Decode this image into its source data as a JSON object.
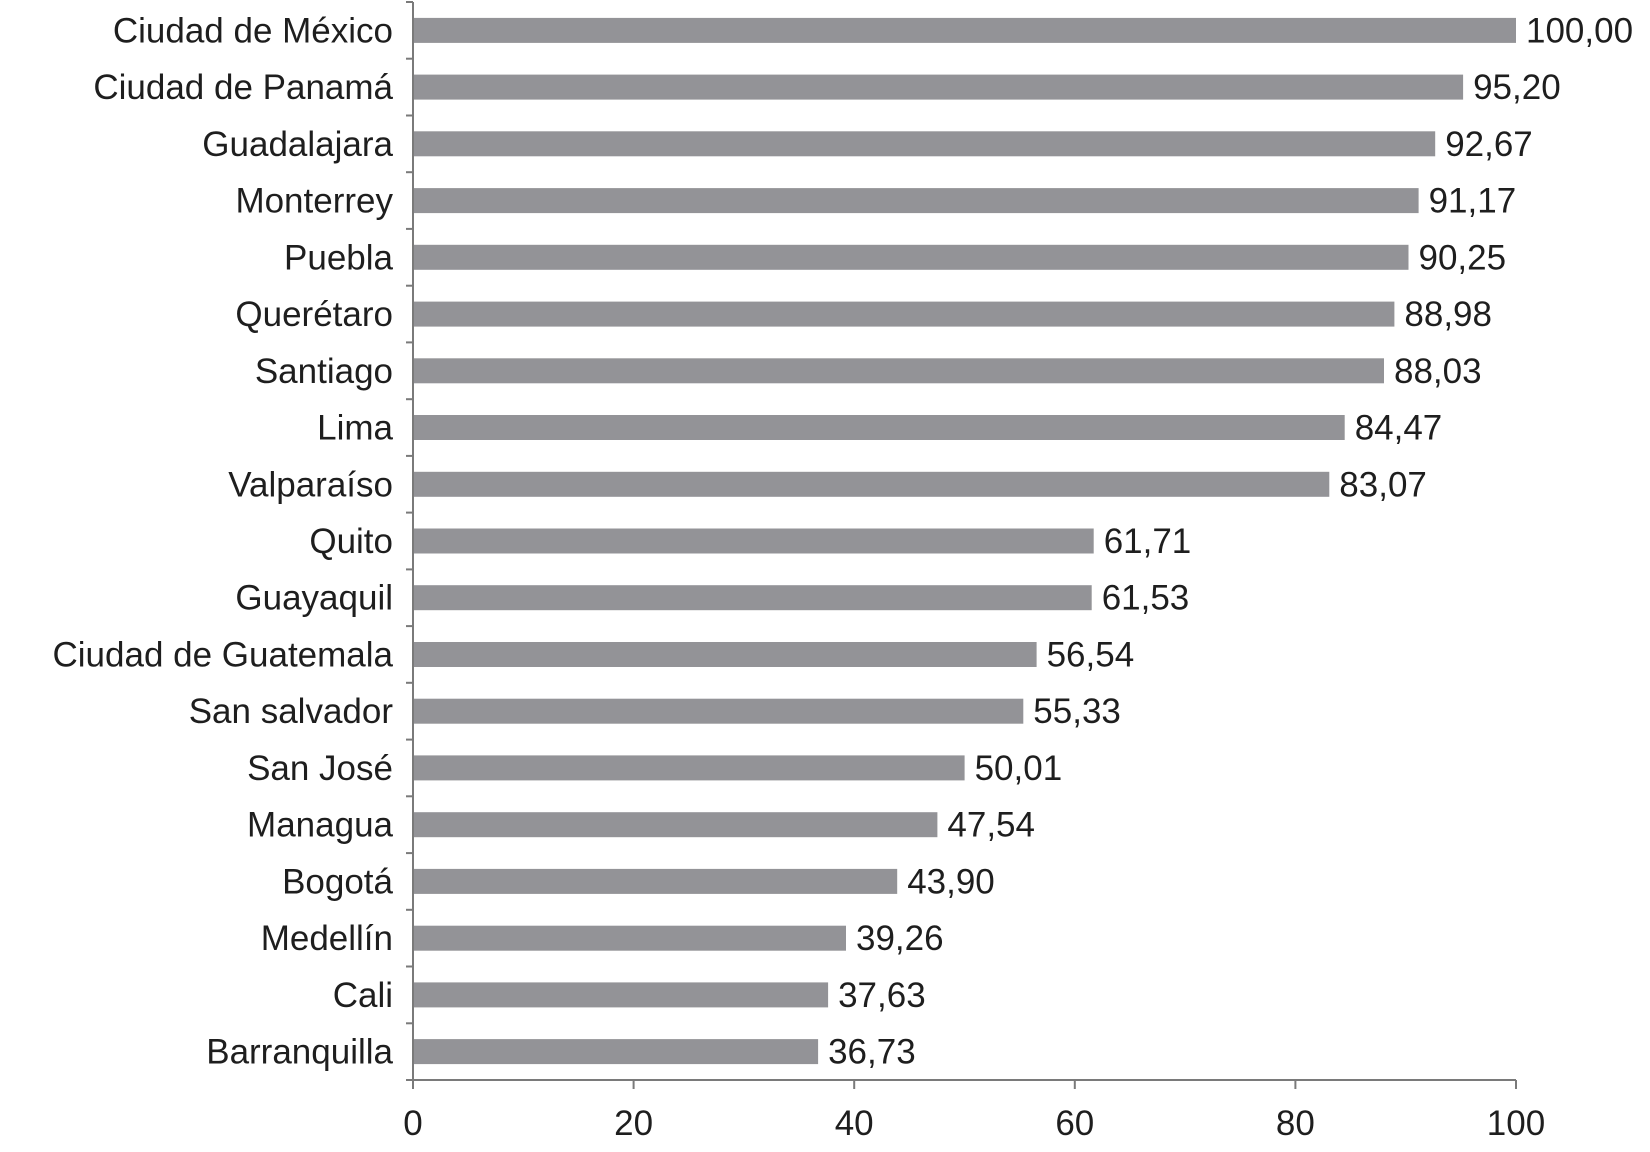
{
  "chart_data": {
    "type": "bar",
    "orientation": "horizontal",
    "title": "",
    "xlabel": "",
    "ylabel": "",
    "categories": [
      "Ciudad de México",
      "Ciudad de Panamá",
      "Guadalajara",
      "Monterrey",
      "Puebla",
      "Querétaro",
      "Santiago",
      "Lima",
      "Valparaíso",
      "Quito",
      "Guayaquil",
      "Ciudad de Guatemala",
      "San salvador",
      "San José",
      "Managua",
      "Bogotá",
      "Medellín",
      "Cali",
      "Barranquilla"
    ],
    "values": [
      100.0,
      95.2,
      92.67,
      91.17,
      90.25,
      88.98,
      88.03,
      84.47,
      83.07,
      61.71,
      61.53,
      56.54,
      55.33,
      50.01,
      47.54,
      43.9,
      39.26,
      37.63,
      36.73
    ],
    "value_labels": [
      "100,00",
      "95,20",
      "92,67",
      "91,17",
      "90,25",
      "88,98",
      "88,03",
      "84,47",
      "83,07",
      "61,71",
      "61,53",
      "56,54",
      "55,33",
      "50,01",
      "47,54",
      "43,90",
      "39,26",
      "37,63",
      "36,73"
    ],
    "xlim": [
      0,
      100
    ],
    "x_ticks": [
      0,
      20,
      40,
      60,
      80,
      100
    ],
    "x_tick_labels": [
      "0",
      "20",
      "40",
      "60",
      "80",
      "100"
    ],
    "grid": false,
    "legend": "none",
    "bar_color": "#939397",
    "axis_color": "#7a7a7a",
    "text_color": "#1e1e1e"
  }
}
